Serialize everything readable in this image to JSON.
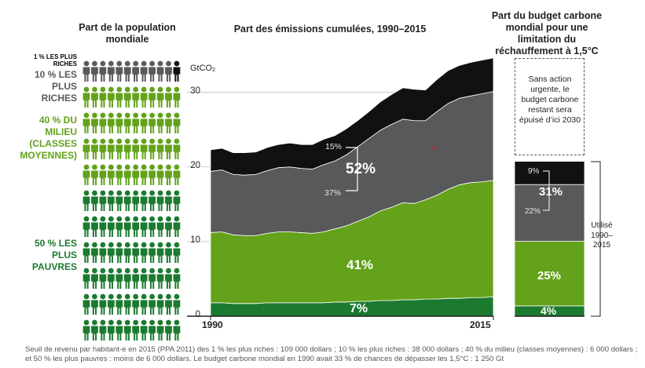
{
  "headers": {
    "population": "Part de la population mondiale",
    "emissions": "Part des émissions cumulées, 1990–2015",
    "budget": "Part du budget carbone mondial pour une limitation du réchauffement à 1,5°C"
  },
  "population_groups": {
    "richest_1": "1 % LES PLUS RICHES",
    "richest_10": "10 % LES PLUS RICHES",
    "middle_40": "40 % DU MILIEU (CLASSES MOYENNES)",
    "poorest_50": "50 % LES PLUS PAUVRES"
  },
  "population_icons": {
    "per_row": 12,
    "rows": [
      {
        "group": "richest_10",
        "count": 11,
        "extra": "richest_1"
      },
      {
        "group": "middle_40",
        "count": 12
      },
      {
        "group": "middle_40",
        "count": 12
      },
      {
        "group": "middle_40",
        "count": 12
      },
      {
        "group": "middle_40",
        "count": 12
      },
      {
        "group": "poorest_50",
        "count": 12
      },
      {
        "group": "poorest_50",
        "count": 12
      },
      {
        "group": "poorest_50",
        "count": 12
      },
      {
        "group": "poorest_50",
        "count": 12
      },
      {
        "group": "poorest_50",
        "count": 12
      },
      {
        "group": "poorest_50",
        "count": 12
      }
    ]
  },
  "colors": {
    "richest_1": "#111111",
    "richest_10": "#58595b",
    "middle_40": "#63a21a",
    "poorest_50": "#1b7a2f",
    "icon_grey": "#58595b"
  },
  "labels": {
    "unit": "GtCO",
    "unit_sub": "2",
    "pct_top1": "15%",
    "pct_top10": "52%",
    "pct_top10_rest": "37%",
    "pct_middle": "41%",
    "pct_poor": "7%",
    "budget_top1": "9%",
    "budget_top10": "31%",
    "budget_top10_rest": "22%",
    "budget_middle": "25%",
    "budget_poor": "4%",
    "no_action": "Sans action urgente, le budget carbone restant sera épuisé d’ici 2030",
    "used": "Utilisé 1990–2015"
  },
  "footnote": "Seuil de revenu par habitant-e en 2015 (PPA 2011) des 1 % les plus riches : 109 000 dollars ; 10 % les plus riches : 38 000 dollars ; 40 % du milieu (classes moyennes) : 6 000 dollars ; et 50 % les plus pauvres : moins de 6 000 dollars. Le budget carbone mondial en 1990 avait 33 % de chances de dépasser les 1,5°C : 1 250 Gt",
  "chart_data": [
    {
      "type": "area",
      "title": "Part des émissions cumulées, 1990–2015",
      "ylabel": "GtCO2",
      "xlabel": "",
      "x": [
        1990,
        1991,
        1992,
        1993,
        1994,
        1995,
        1996,
        1997,
        1998,
        1999,
        2000,
        2001,
        2002,
        2003,
        2004,
        2005,
        2006,
        2007,
        2008,
        2009,
        2010,
        2011,
        2012,
        2013,
        2014,
        2015
      ],
      "x_tick_labels": [
        "1990",
        "2015"
      ],
      "ylim": [
        0,
        35
      ],
      "y_ticks": [
        0,
        10,
        20,
        30
      ],
      "stacked": true,
      "series": [
        {
          "name": "50 % les plus pauvres",
          "values": [
            1.8,
            1.8,
            1.7,
            1.7,
            1.7,
            1.8,
            1.8,
            1.8,
            1.8,
            1.8,
            1.8,
            1.9,
            1.9,
            2.0,
            2.0,
            2.1,
            2.1,
            2.2,
            2.2,
            2.3,
            2.3,
            2.4,
            2.4,
            2.5,
            2.5,
            2.6
          ]
        },
        {
          "name": "40 % du milieu",
          "values": [
            9.4,
            9.5,
            9.2,
            9.1,
            9.1,
            9.3,
            9.5,
            9.5,
            9.4,
            9.3,
            9.5,
            9.8,
            10.2,
            10.7,
            11.3,
            12.0,
            12.5,
            13.0,
            12.9,
            13.3,
            13.9,
            14.6,
            15.2,
            15.4,
            15.5,
            15.6
          ]
        },
        {
          "name": "10 % les plus riches (hors 1 %)",
          "values": [
            8.2,
            8.3,
            8.1,
            8.1,
            8.2,
            8.4,
            8.6,
            8.7,
            8.6,
            8.6,
            9.0,
            9.1,
            9.5,
            10.0,
            10.5,
            10.8,
            11.1,
            11.2,
            11.1,
            10.6,
            11.2,
            11.5,
            11.6,
            11.6,
            11.8,
            11.9
          ]
        },
        {
          "name": "1 % les plus riches",
          "values": [
            2.9,
            2.9,
            2.9,
            3.0,
            3.0,
            3.1,
            3.1,
            3.2,
            3.2,
            3.3,
            3.4,
            3.4,
            3.5,
            3.5,
            3.6,
            3.8,
            4.0,
            4.2,
            4.2,
            4.1,
            4.3,
            4.4,
            4.4,
            4.5,
            4.5,
            4.5
          ]
        }
      ],
      "annotations": [
        "15%",
        "52%",
        "37%",
        "41%",
        "7%"
      ]
    },
    {
      "type": "bar",
      "title": "Part du budget carbone mondial pour une limitation du réchauffement à 1,5°C",
      "stacked": true,
      "categories": [
        "Utilisé 1990–2015"
      ],
      "series": [
        {
          "name": "50 % les plus pauvres",
          "values": [
            4
          ]
        },
        {
          "name": "40 % du milieu",
          "values": [
            25
          ]
        },
        {
          "name": "10 % les plus riches (hors 1 %)",
          "values": [
            22
          ]
        },
        {
          "name": "1 % les plus riches",
          "values": [
            9
          ]
        },
        {
          "name": "Sans action urgente, le budget carbone restant sera épuisé d’ici 2030",
          "values": [
            40
          ]
        }
      ],
      "unit": "%"
    }
  ]
}
